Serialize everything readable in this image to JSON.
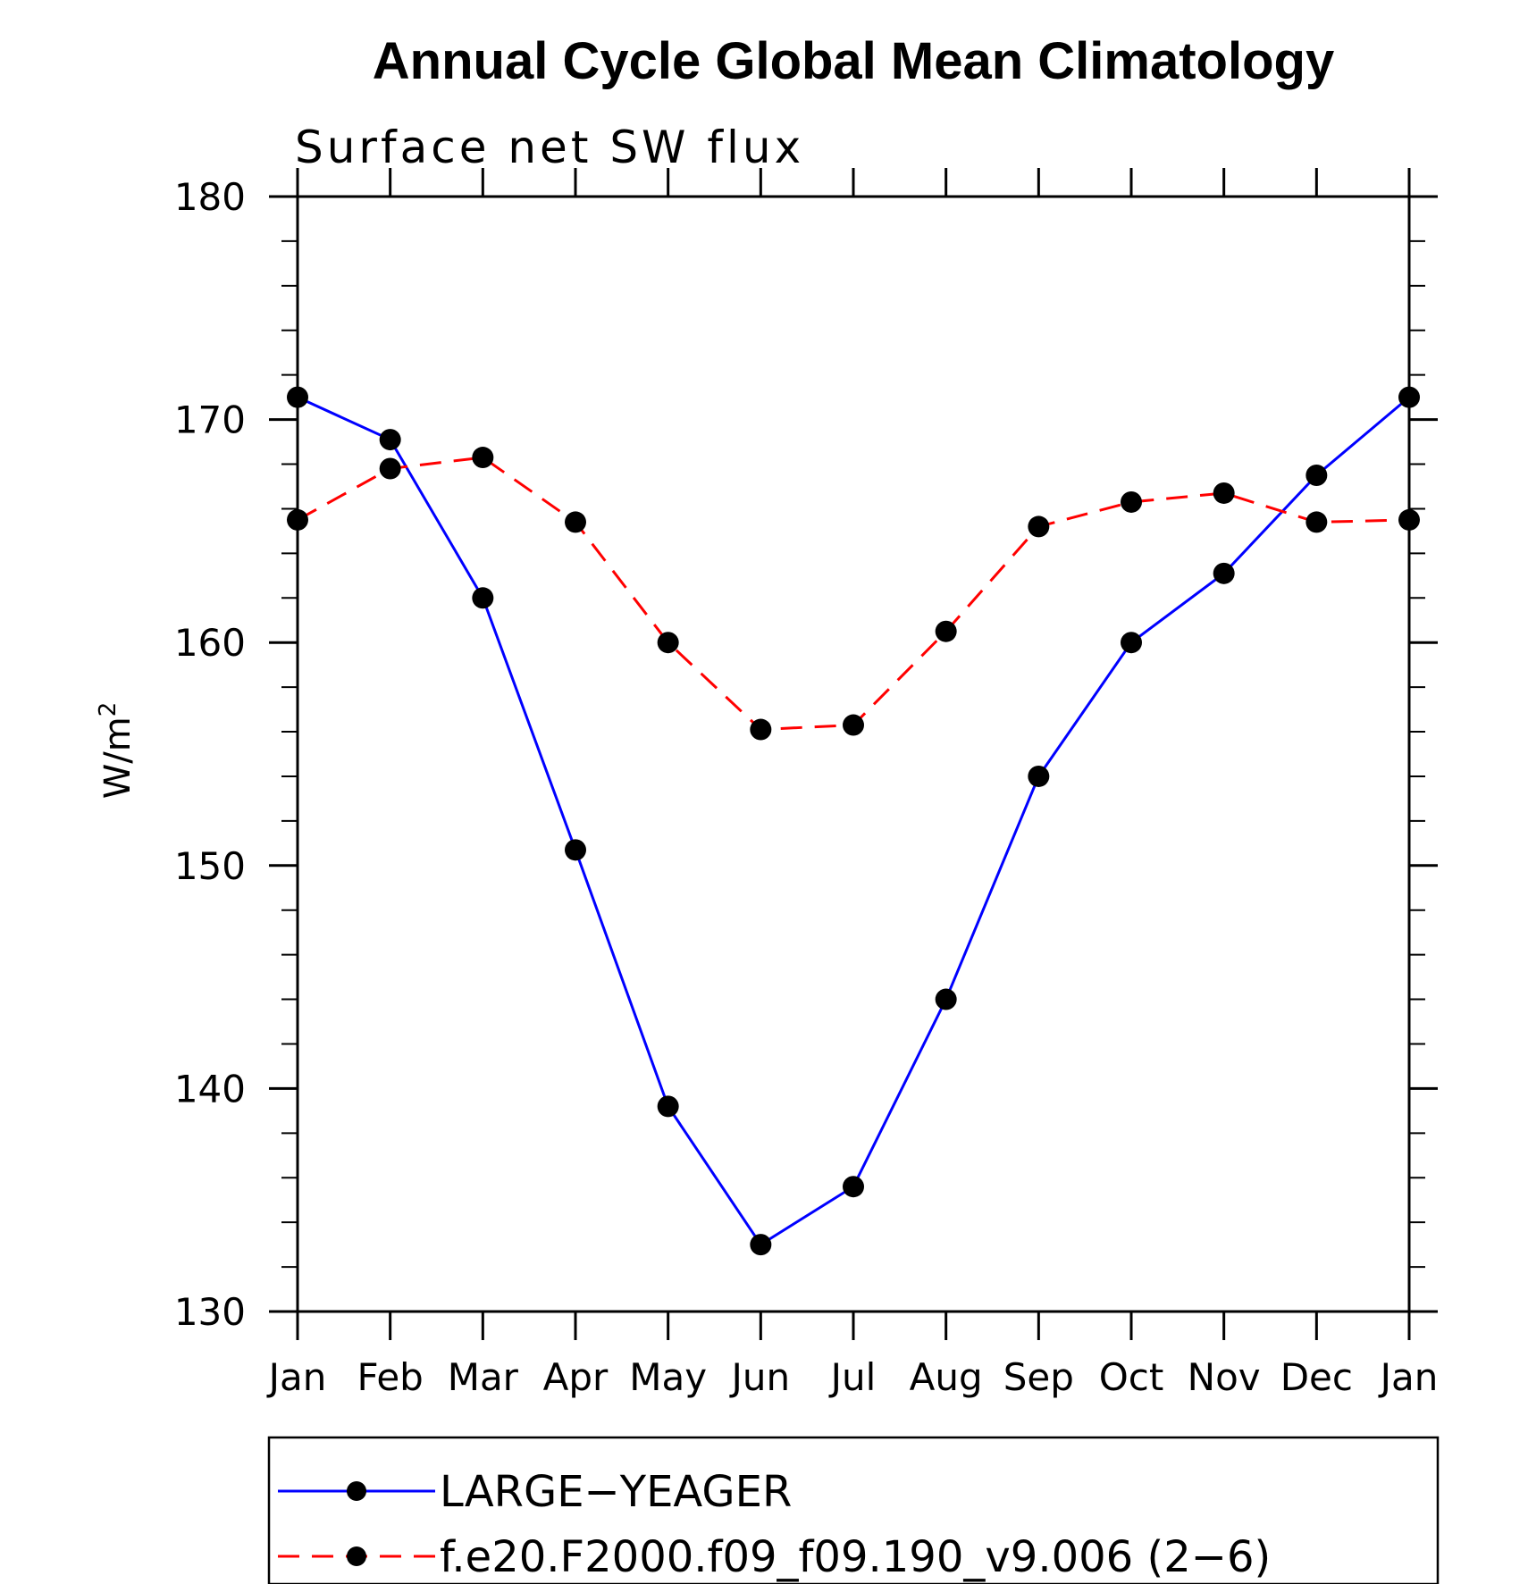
{
  "chart_data": {
    "type": "line",
    "title": "Annual Cycle Global Mean Climatology",
    "subtitle": "Surface net SW flux",
    "ylabel_base": "W/m",
    "ylabel_sup": "2",
    "xlabel": "",
    "categories": [
      "Jan",
      "Feb",
      "Mar",
      "Apr",
      "May",
      "Jun",
      "Jul",
      "Aug",
      "Sep",
      "Oct",
      "Nov",
      "Dec",
      "Jan"
    ],
    "ylim": [
      130,
      180
    ],
    "yticks": [
      130,
      140,
      150,
      160,
      170,
      180
    ],
    "yminor_step": 2,
    "grid": false,
    "legend_position": "bottom",
    "series": [
      {
        "name": "LARGE−YEAGER",
        "color": "#0000ff",
        "dash": "solid",
        "marker": "filled-circle",
        "values": [
          171.0,
          169.1,
          162.0,
          150.7,
          139.2,
          133.0,
          135.6,
          144.0,
          154.0,
          160.0,
          163.1,
          167.5,
          171.0
        ]
      },
      {
        "name": "f.e20.F2000.f09_f09.190_v9.006 (2−6)",
        "color": "#ff0000",
        "dash": "dashed",
        "marker": "filled-circle",
        "values": [
          165.5,
          167.8,
          168.3,
          165.4,
          160.0,
          156.1,
          156.3,
          160.5,
          165.2,
          166.3,
          166.7,
          165.4,
          165.5
        ]
      }
    ]
  }
}
